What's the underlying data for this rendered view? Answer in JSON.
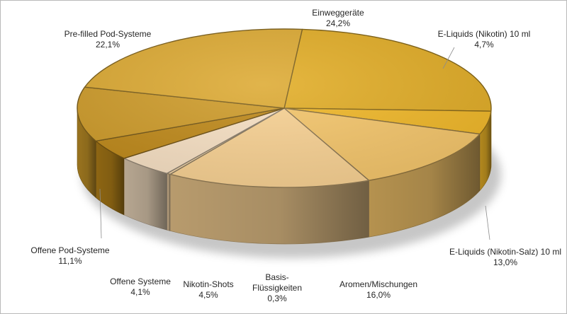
{
  "chart_data": {
    "type": "pie",
    "title": "",
    "legend": "none",
    "start_angle_deg": 5,
    "slices": [
      {
        "label": "Einweggeräte",
        "value_label": "24,2%",
        "value": 24.2,
        "color": "#e2ad26"
      },
      {
        "label": "E-Liquids (Nikotin) 10 ml",
        "value_label": "4,7%",
        "value": 4.7,
        "color": "#f1b828"
      },
      {
        "label": "E-Liquids (Nikotin-Salz) 10 ml",
        "value_label": "13,0%",
        "value": 13.0,
        "color": "#f5c66b"
      },
      {
        "label": "Aromen/Mischungen",
        "value_label": "16,0%",
        "value": 16.0,
        "color": "#f9d293"
      },
      {
        "label": "Basis-Flüssigkeiten",
        "value_label": "0,3%",
        "value": 0.3,
        "color": "#f4d6a8"
      },
      {
        "label": "Nikotin-Shots",
        "value_label": "4,5%",
        "value": 4.5,
        "color": "#f8e1c4"
      },
      {
        "label": "Offene Systeme",
        "value_label": "4,1%",
        "value": 4.1,
        "color": "#c08a1a"
      },
      {
        "label": "Offene Pod-Systeme",
        "value_label": "11,1%",
        "value": 11.1,
        "color": "#cf9c2a"
      },
      {
        "label": "Pre-filled Pod-Systeme",
        "value_label": "22,1%",
        "value": 22.1,
        "color": "#ddaa33"
      }
    ],
    "labels": [
      {
        "lines": [
          "Einweggeräte"
        ]
      },
      {
        "lines": [
          "E-Liquids (Nikotin) 10 ml"
        ]
      },
      {
        "lines": [
          "E-Liquids (Nikotin-Salz) 10 ml"
        ]
      },
      {
        "lines": [
          "Aromen/Mischungen"
        ]
      },
      {
        "lines": [
          "Basis-",
          "Flüssigkeiten"
        ]
      },
      {
        "lines": [
          "Nikotin-Shots"
        ]
      },
      {
        "lines": [
          "Offene Systeme"
        ]
      },
      {
        "lines": [
          "Offene Pod-Systeme"
        ]
      },
      {
        "lines": [
          "Pre-filled Pod-Systeme"
        ]
      }
    ]
  }
}
